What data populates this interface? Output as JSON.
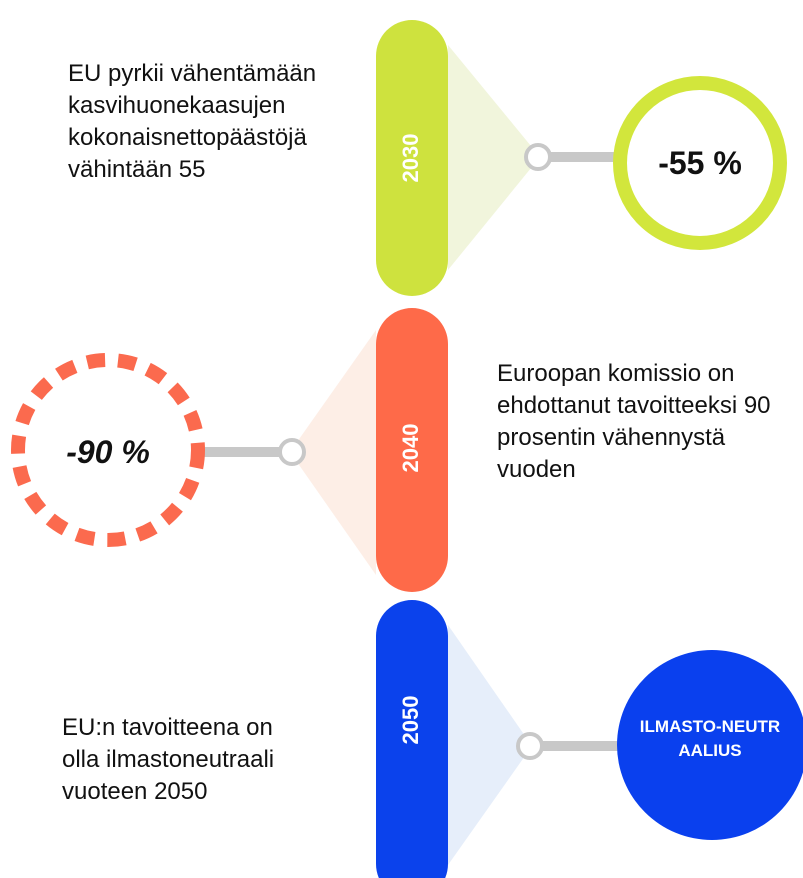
{
  "items": [
    {
      "year": "2030",
      "value": "-55 %",
      "text": "EU pyrkii vähentämään kasvihuonekaasujen kokonaisnettopäästöjä vähintään 55"
    },
    {
      "year": "2040",
      "value": "-90 %",
      "text": "Euroopan komissio on ehdottanut tavoitteeksi 90 prosentin vähennystä vuoden"
    },
    {
      "year": "2050",
      "value": "ILMASTO-NEUTRAALIUS",
      "text": "EU:n tavoitteena on olla ilmastoneutraali vuoteen 2050"
    }
  ]
}
